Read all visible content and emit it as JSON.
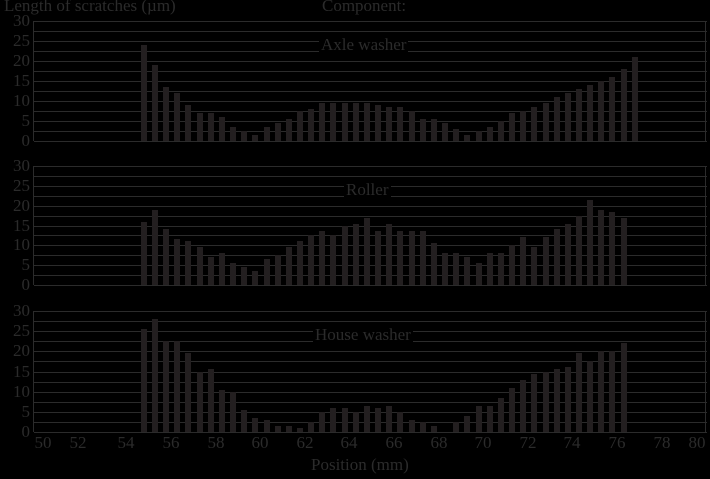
{
  "chart_data": {
    "type": "bar",
    "title": "",
    "ylabel": "Length of scratches (µm)",
    "xlabel": "Position (mm)",
    "legend_title": "Component:",
    "ylim": [
      0,
      30
    ],
    "xlim": [
      50,
      80
    ],
    "yticks": [
      "0",
      "5",
      "10",
      "15",
      "20",
      "25",
      "30"
    ],
    "xticks": [
      "50",
      "52",
      "54",
      "56",
      "58",
      "60",
      "62",
      "64",
      "66",
      "68",
      "70",
      "72",
      "74",
      "76",
      "78",
      "80"
    ],
    "grid": true,
    "x": [
      54.75,
      55.25,
      55.75,
      56.25,
      56.75,
      57.25,
      57.75,
      58.25,
      58.75,
      59.25,
      59.75,
      60.25,
      60.75,
      61.25,
      61.75,
      62.25,
      62.75,
      63.25,
      63.75,
      64.25,
      64.75,
      65.25,
      65.75,
      66.25,
      66.75,
      67.25,
      67.75,
      68.25,
      68.75,
      69.25,
      69.75,
      70.25,
      70.75,
      71.25,
      71.75,
      72.25,
      72.75,
      73.25,
      73.75,
      74.25,
      74.75,
      75.25,
      75.75,
      76.25,
      76.75
    ],
    "series": [
      {
        "name": "Axle washer",
        "values": [
          24,
          19,
          13.5,
          12,
          9,
          7,
          7,
          6,
          3.5,
          2.5,
          1.5,
          3.5,
          4.5,
          5.5,
          7.5,
          8,
          9.5,
          9.5,
          9.5,
          9.5,
          9.5,
          9,
          8.5,
          8.5,
          7.5,
          5.5,
          5.5,
          4.5,
          3,
          1.5,
          2.5,
          3.5,
          5,
          7,
          7.5,
          8.5,
          9.5,
          11,
          12,
          13,
          14,
          15,
          16,
          18,
          21
        ]
      },
      {
        "name": "Roller",
        "values": [
          16,
          19,
          14,
          11.5,
          11,
          9.5,
          7,
          8,
          5.5,
          4.5,
          3.5,
          6.5,
          7.5,
          9.5,
          11,
          12.5,
          13.5,
          12.5,
          15,
          15.5,
          17,
          13.5,
          15.5,
          13.5,
          13.5,
          13.5,
          10.5,
          8,
          8,
          7,
          5.5,
          8,
          8,
          10,
          12,
          9.5,
          12,
          14,
          15.5,
          17.5,
          21.5,
          19,
          18.5,
          17,
          0
        ]
      },
      {
        "name": "House washer",
        "values": [
          25.5,
          28,
          22.5,
          22.5,
          19.5,
          15,
          15.5,
          10.5,
          10,
          5.5,
          3.5,
          3,
          1.5,
          1.5,
          1,
          2.5,
          5,
          6,
          6,
          5,
          6.5,
          6,
          6.5,
          5,
          3,
          2.5,
          1.5,
          0,
          2.5,
          4,
          6.5,
          6.5,
          8.5,
          11,
          13,
          14.5,
          15,
          15.5,
          16,
          19.5,
          17.5,
          20,
          20,
          22,
          0
        ]
      }
    ]
  },
  "labels": {
    "ylabel": "Length of scratches (µm)",
    "legend_title": "Component:",
    "xlabel": "Position (mm)",
    "panel_0": "Axle washer",
    "panel_1": "Roller",
    "panel_2": "House washer"
  },
  "colors": {
    "background": "#000000",
    "bar": "#231f20",
    "text": "#2b2b2b",
    "grid": "#2b2b2b"
  }
}
